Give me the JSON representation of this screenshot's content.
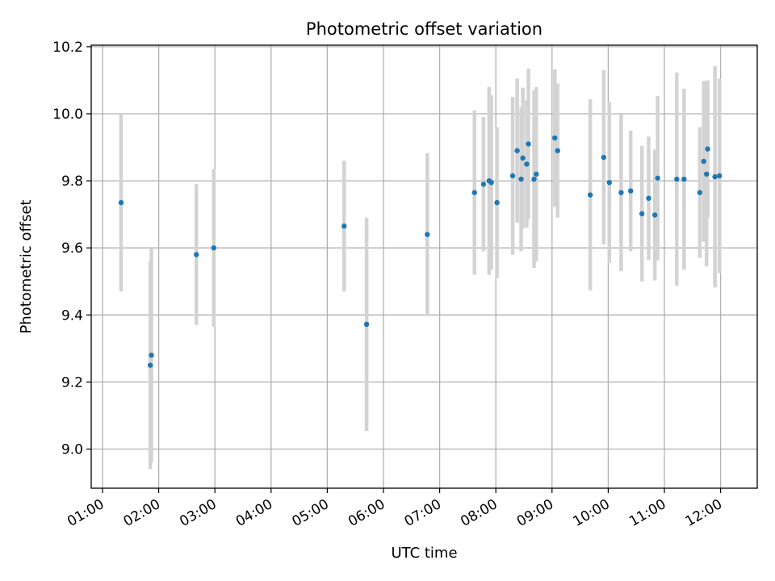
{
  "chart_data": {
    "type": "scatter",
    "title": "Photometric offset variation",
    "xlabel": "UTC time",
    "ylabel": "Photometric offset",
    "grid": true,
    "x_unit": "hour of day (UTC)",
    "xlim": [
      0.8,
      12.5
    ],
    "ylim": [
      8.88,
      10.2
    ],
    "x_ticks": [
      1,
      2,
      3,
      4,
      5,
      6,
      7,
      8,
      9,
      10,
      11,
      12
    ],
    "x_tick_labels": [
      "01:00",
      "02:00",
      "03:00",
      "04:00",
      "05:00",
      "06:00",
      "07:00",
      "08:00",
      "09:00",
      "10:00",
      "11:00",
      "12:00"
    ],
    "y_ticks": [
      9.0,
      9.2,
      9.4,
      9.6,
      9.8,
      10.0,
      10.2
    ],
    "y_tick_labels": [
      "9.0",
      "9.2",
      "9.4",
      "9.6",
      "9.8",
      "10.0",
      "10.2"
    ],
    "colors": {
      "point": "#1f77b4",
      "errorbar": "#d3d3d3",
      "grid": "#b0b0b0"
    },
    "series": [
      {
        "points": [
          {
            "x": 1.33,
            "y": 9.735,
            "err": 0.265
          },
          {
            "x": 1.85,
            "y": 9.25,
            "err": 0.31
          },
          {
            "x": 1.87,
            "y": 9.28,
            "err": 0.32
          },
          {
            "x": 2.67,
            "y": 9.58,
            "err": 0.21
          },
          {
            "x": 2.98,
            "y": 9.6,
            "err": 0.235
          },
          {
            "x": 5.3,
            "y": 9.665,
            "err": 0.195
          },
          {
            "x": 5.7,
            "y": 9.372,
            "err": 0.318
          },
          {
            "x": 6.78,
            "y": 9.64,
            "err": 0.243
          },
          {
            "x": 7.62,
            "y": 9.765,
            "err": 0.245
          },
          {
            "x": 7.78,
            "y": 9.79,
            "err": 0.2
          },
          {
            "x": 7.88,
            "y": 9.8,
            "err": 0.28
          },
          {
            "x": 7.92,
            "y": 9.795,
            "err": 0.26
          },
          {
            "x": 8.02,
            "y": 9.735,
            "err": 0.225
          },
          {
            "x": 8.3,
            "y": 9.815,
            "err": 0.235
          },
          {
            "x": 8.38,
            "y": 9.89,
            "err": 0.215
          },
          {
            "x": 8.45,
            "y": 9.805,
            "err": 0.215
          },
          {
            "x": 8.48,
            "y": 9.868,
            "err": 0.21
          },
          {
            "x": 8.55,
            "y": 9.85,
            "err": 0.19
          },
          {
            "x": 8.58,
            "y": 9.91,
            "err": 0.225
          },
          {
            "x": 8.68,
            "y": 9.805,
            "err": 0.265
          },
          {
            "x": 8.72,
            "y": 9.82,
            "err": 0.26
          },
          {
            "x": 9.05,
            "y": 9.928,
            "err": 0.205
          },
          {
            "x": 9.1,
            "y": 9.89,
            "err": 0.2
          },
          {
            "x": 9.68,
            "y": 9.758,
            "err": 0.285
          },
          {
            "x": 9.92,
            "y": 9.87,
            "err": 0.26
          },
          {
            "x": 10.02,
            "y": 9.795,
            "err": 0.24
          },
          {
            "x": 10.23,
            "y": 9.765,
            "err": 0.235
          },
          {
            "x": 10.4,
            "y": 9.77,
            "err": 0.18
          },
          {
            "x": 10.6,
            "y": 9.702,
            "err": 0.202
          },
          {
            "x": 10.72,
            "y": 9.748,
            "err": 0.184
          },
          {
            "x": 10.83,
            "y": 9.698,
            "err": 0.195
          },
          {
            "x": 10.88,
            "y": 9.808,
            "err": 0.245
          },
          {
            "x": 11.22,
            "y": 9.805,
            "err": 0.318
          },
          {
            "x": 11.35,
            "y": 9.805,
            "err": 0.27
          },
          {
            "x": 11.63,
            "y": 9.765,
            "err": 0.195
          },
          {
            "x": 11.7,
            "y": 9.858,
            "err": 0.24
          },
          {
            "x": 11.75,
            "y": 9.82,
            "err": 0.275
          },
          {
            "x": 11.77,
            "y": 9.895,
            "err": 0.205
          },
          {
            "x": 11.9,
            "y": 9.812,
            "err": 0.33
          },
          {
            "x": 11.98,
            "y": 9.815,
            "err": 0.29
          }
        ]
      }
    ]
  }
}
